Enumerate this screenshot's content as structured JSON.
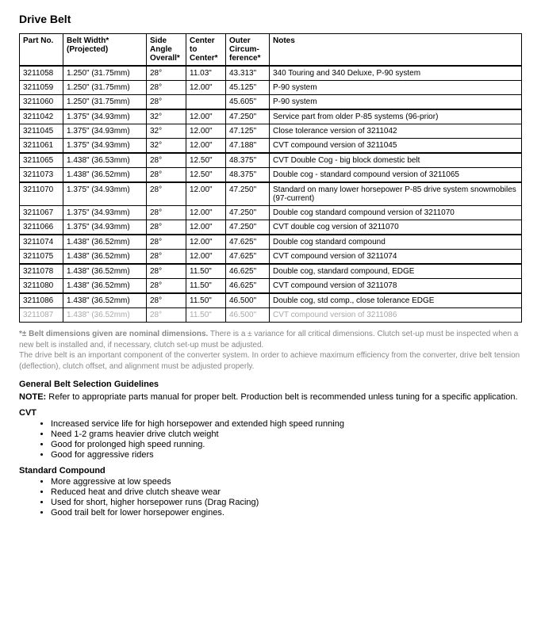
{
  "title": "Drive Belt",
  "columns": [
    "Part No.",
    "Belt Width*\n(Projected)",
    "Side\nAngle\nOverall*",
    "Center\nto\nCenter*",
    "Outer\nCircum-\nference*",
    "Notes"
  ],
  "rows": [
    {
      "cells": [
        "3211058",
        "1.250\" (31.75mm)",
        "28°",
        "11.03\"",
        "43.313\"",
        "340 Touring and 340 Deluxe, P-90 system"
      ],
      "groupEnd": false
    },
    {
      "cells": [
        "3211059",
        "1.250\" (31.75mm)",
        "28°",
        "12.00\"",
        "45.125\"",
        "P-90 system"
      ],
      "groupEnd": false
    },
    {
      "cells": [
        "3211060",
        "1.250\" (31.75mm)",
        "28°",
        "",
        "45.605\"",
        "P-90 system"
      ],
      "groupEnd": true
    },
    {
      "cells": [
        "3211042",
        "1.375\" (34.93mm)",
        "32°",
        "12.00\"",
        "47.250\"",
        "Service part from older P-85 systems (96-prior)"
      ],
      "groupEnd": false
    },
    {
      "cells": [
        "3211045",
        "1.375\" (34.93mm)",
        "32°",
        "12.00\"",
        "47.125\"",
        "Close tolerance version of 3211042"
      ],
      "groupEnd": false
    },
    {
      "cells": [
        "3211061",
        "1.375\" (34.93mm)",
        "32°",
        "12.00\"",
        "47.188\"",
        "CVT compound version of 3211045"
      ],
      "groupEnd": true
    },
    {
      "cells": [
        "3211065",
        "1.438\" (36.53mm)",
        "28°",
        "12.50\"",
        "48.375\"",
        "CVT Double Cog - big block domestic belt"
      ],
      "groupEnd": false
    },
    {
      "cells": [
        "3211073",
        "1.438\" (36.52mm)",
        "28°",
        "12.50\"",
        "48.375\"",
        "Double cog - standard compound version of 3211065"
      ],
      "groupEnd": true
    },
    {
      "cells": [
        "3211070",
        "1.375\" (34.93mm)",
        "28°",
        "12.00\"",
        "47.250\"",
        "Standard on many lower horsepower P-85 drive system snowmobiles (97-current)"
      ],
      "groupEnd": false
    },
    {
      "cells": [
        "3211067",
        "1.375\" (34.93mm)",
        "28°",
        "12.00\"",
        "47.250\"",
        "Double cog standard compound version of 3211070"
      ],
      "groupEnd": false
    },
    {
      "cells": [
        "3211066",
        "1.375\" (34.93mm)",
        "28°",
        "12.00\"",
        "47.250\"",
        "CVT double cog version of 3211070"
      ],
      "groupEnd": true
    },
    {
      "cells": [
        "3211074",
        "1.438\" (36.52mm)",
        "28°",
        "12.00\"",
        "47.625\"",
        "Double cog standard compound"
      ],
      "groupEnd": false
    },
    {
      "cells": [
        "3211075",
        "1.438\" (36.52mm)",
        "28°",
        "12.00\"",
        "47.625\"",
        "CVT compound version of 3211074"
      ],
      "groupEnd": true
    },
    {
      "cells": [
        "3211078",
        "1.438\" (36.52mm)",
        "28°",
        "11.50\"",
        "46.625\"",
        "Double cog, standard compound, EDGE"
      ],
      "groupEnd": false
    },
    {
      "cells": [
        "3211080",
        "1.438\" (36.52mm)",
        "28°",
        "11.50\"",
        "46.625\"",
        "CVT compound version of 3211078"
      ],
      "groupEnd": true
    },
    {
      "cells": [
        "3211086",
        "1.438\" (36.52mm)",
        "28°",
        "11.50\"",
        "46.500\"",
        "Double cog, std comp., close tolerance EDGE"
      ],
      "groupEnd": false
    },
    {
      "cells": [
        "3211087",
        "1.438\" (36.52mm)",
        "28°",
        "11.50\"",
        "46.500\"",
        "CVT compound version of 3211086"
      ],
      "groupEnd": false,
      "faded": true
    }
  ],
  "footnote": {
    "line1_strong": "*± Belt dimensions given are nominal dimensions.",
    "line1_rest": "  There is a ± variance for all critical dimensions.  Clutch set-up must be inspected when a new belt is installed and, if necessary, clutch set-up must be adjusted.",
    "line2": "The drive belt is an important component of the converter system.  In order to achieve maximum efficiency from the converter, drive belt tension (deflection), clutch offset, and alignment must be adjusted properly."
  },
  "guidelines_heading": "General Belt Selection Guidelines",
  "note": {
    "label": "NOTE:",
    "text": "  Refer to appropriate parts manual for proper belt.  Production belt is recommended unless tuning for a specific application."
  },
  "cvt": {
    "heading": "CVT",
    "bullets": [
      "Increased service life for high horsepower and extended high speed running",
      "Need 1-2 grams heavier drive clutch weight",
      "Good for prolonged high speed running.",
      "Good for aggressive riders"
    ]
  },
  "standard": {
    "heading": "Standard Compound",
    "bullets": [
      "More aggressive at low speeds",
      "Reduced heat and drive clutch sheave wear",
      "Used for short, higher horsepower runs (Drag Racing)",
      "Good trail belt for lower horsepower engines."
    ]
  }
}
